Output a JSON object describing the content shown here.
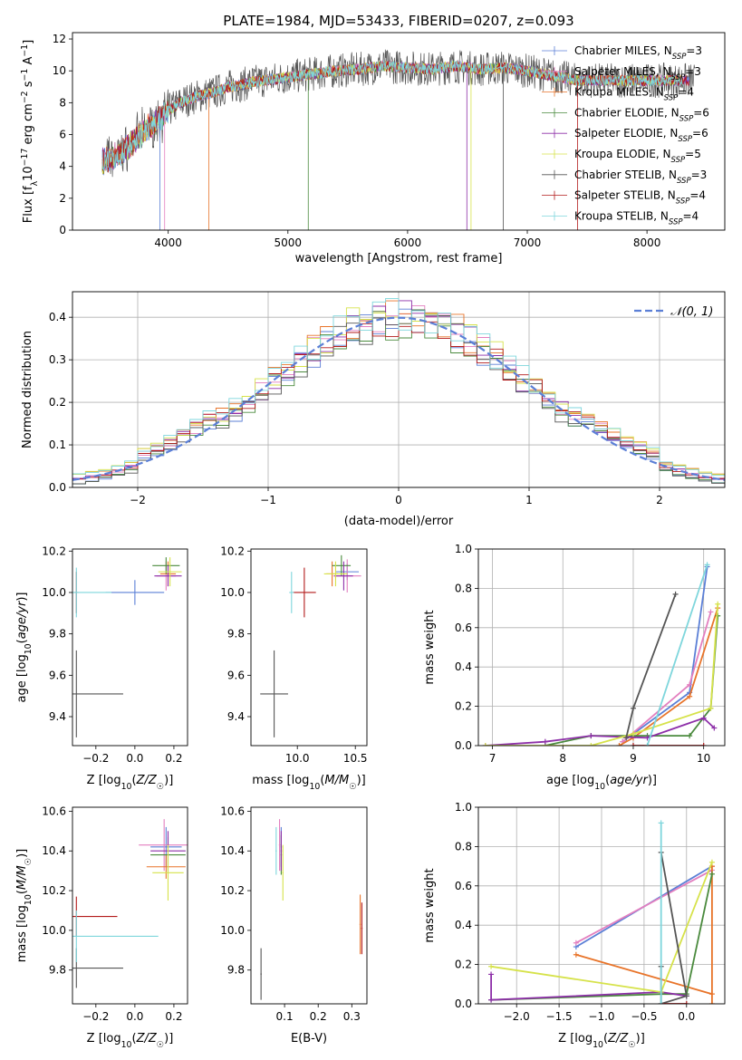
{
  "figure": {
    "title": "PLATE=1984, MJD=53433, FIBERID=0207, z=0.093"
  },
  "chart_data": [
    {
      "id": "spectrum",
      "type": "line",
      "xlabel": "wavelength [Angstrom, rest frame]",
      "ylabel": "Flux [f_λ10^-17 erg cm^-2 s^-1 A^-1]",
      "xlim": [
        3200,
        8650
      ],
      "ylim": [
        0,
        12.4
      ],
      "xticks": [
        4000,
        5000,
        6000,
        7000,
        8000
      ],
      "yticks": [
        0,
        2,
        4,
        6,
        8,
        10,
        12
      ],
      "legend_position": "top-right",
      "series": [
        {
          "name": "Chabrier MILES, N_SSP=3",
          "color": "#5b7fd6"
        },
        {
          "name": "Salpeter MILES, N_SSP=3",
          "color": "#e37fbf"
        },
        {
          "name": "Kroupa MILES, N_SSP=4",
          "color": "#e8742a"
        },
        {
          "name": "Chabrier ELODIE, N_SSP=6",
          "color": "#4a8a3d"
        },
        {
          "name": "Salpeter ELODIE, N_SSP=6",
          "color": "#8d2fa8"
        },
        {
          "name": "Kroupa ELODIE, N_SSP=5",
          "color": "#d6e24a"
        },
        {
          "name": "Chabrier STELIB, N_SSP=3",
          "color": "#555555"
        },
        {
          "name": "Salpeter STELIB, N_SSP=4",
          "color": "#b31b1b"
        },
        {
          "name": "Kroupa STELIB, N_SSP=4",
          "color": "#7ed6dc"
        }
      ],
      "profile": {
        "x": [
          3450,
          3600,
          3700,
          3800,
          3900,
          4000,
          4100,
          4200,
          4300,
          4400,
          4500,
          4600,
          4700,
          4800,
          4900,
          5000,
          5200,
          5400,
          5600,
          5800,
          6000,
          6200,
          6400,
          6600,
          6800,
          7000,
          7200,
          7420
        ],
        "y": [
          4.3,
          4.8,
          5.5,
          6.2,
          6.8,
          7.5,
          8.0,
          8.3,
          8.5,
          8.7,
          9.0,
          9.1,
          9.3,
          9.4,
          9.5,
          9.6,
          9.8,
          10.0,
          10.1,
          10.3,
          10.2,
          10.1,
          10.3,
          10.1,
          10.2,
          10.0,
          9.7,
          9.4
        ]
      },
      "noise_spikes": [
        3930,
        3970,
        4340,
        5170,
        6495,
        6530,
        6800,
        7420
      ]
    },
    {
      "id": "residuals",
      "type": "step",
      "xlabel": "(data-model)/error",
      "ylabel": "Normed distribution",
      "xlim": [
        -2.5,
        2.5
      ],
      "ylim": [
        0,
        0.46
      ],
      "xticks": [
        -2,
        -1,
        0,
        1,
        2
      ],
      "yticks": [
        0.0,
        0.1,
        0.2,
        0.3,
        0.4
      ],
      "reference": {
        "name": "𝒩(0, 1)",
        "mean": 0,
        "sigma": 1,
        "color": "#5b7fd6"
      },
      "legend_position": "top-right"
    },
    {
      "id": "age_vs_Z",
      "type": "errorbar",
      "xlabel": "Z [log10(Z/Z☉)]",
      "ylabel": "age [log10(age/yr)]",
      "xlim": [
        -0.32,
        0.27
      ],
      "ylim": [
        9.26,
        10.21
      ],
      "xticks": [
        -0.2,
        0.0,
        0.2
      ],
      "yticks": [
        9.4,
        9.6,
        9.8,
        10.0,
        10.2
      ],
      "points": [
        {
          "x": 0.0,
          "y": 10.0,
          "xerr": 0.15,
          "yerr": 0.06,
          "color": "#5b7fd6"
        },
        {
          "x": 0.16,
          "y": 10.08,
          "xerr": 0.05,
          "yerr": 0.07,
          "color": "#e37fbf"
        },
        {
          "x": 0.17,
          "y": 10.09,
          "xerr": 0.04,
          "yerr": 0.06,
          "color": "#e8742a"
        },
        {
          "x": 0.16,
          "y": 10.13,
          "xerr": 0.07,
          "yerr": 0.04,
          "color": "#4a8a3d"
        },
        {
          "x": 0.17,
          "y": 10.08,
          "xerr": 0.07,
          "yerr": 0.05,
          "color": "#8d2fa8"
        },
        {
          "x": 0.18,
          "y": 10.1,
          "xerr": 0.06,
          "yerr": 0.07,
          "color": "#d6e24a"
        },
        {
          "x": -0.3,
          "y": 9.51,
          "xerr": 0.24,
          "yerr": 0.21,
          "color": "#555555"
        },
        {
          "x": -0.3,
          "y": 10.0,
          "xerr": 0.01,
          "yerr": 0.1,
          "color": "#b31b1b"
        },
        {
          "x": -0.3,
          "y": 10.0,
          "xerr": 0.18,
          "yerr": 0.12,
          "color": "#7ed6dc"
        }
      ]
    },
    {
      "id": "age_vs_mass",
      "type": "errorbar",
      "xlabel": "mass [log10(M/M☉)]",
      "ylabel": "",
      "xlim": [
        9.6,
        10.6
      ],
      "ylim": [
        9.26,
        10.21
      ],
      "xticks": [
        10.0,
        10.5
      ],
      "yticks": [
        9.4,
        9.6,
        9.8,
        10.0,
        10.2
      ],
      "points": [
        {
          "x": 10.43,
          "y": 10.1,
          "xerr": 0.1,
          "yerr": 0.04,
          "color": "#5b7fd6"
        },
        {
          "x": 10.43,
          "y": 10.08,
          "xerr": 0.12,
          "yerr": 0.08,
          "color": "#e37fbf"
        },
        {
          "x": 10.3,
          "y": 10.09,
          "xerr": 0.05,
          "yerr": 0.06,
          "color": "#e8742a"
        },
        {
          "x": 10.38,
          "y": 10.13,
          "xerr": 0.08,
          "yerr": 0.05,
          "color": "#4a8a3d"
        },
        {
          "x": 10.4,
          "y": 10.08,
          "xerr": 0.08,
          "yerr": 0.07,
          "color": "#8d2fa8"
        },
        {
          "x": 10.33,
          "y": 10.09,
          "xerr": 0.1,
          "yerr": 0.06,
          "color": "#d6e24a"
        },
        {
          "x": 9.8,
          "y": 9.51,
          "xerr": 0.12,
          "yerr": 0.21,
          "color": "#555555"
        },
        {
          "x": 10.06,
          "y": 10.0,
          "xerr": 0.1,
          "yerr": 0.12,
          "color": "#b31b1b"
        },
        {
          "x": 9.95,
          "y": 10.0,
          "xerr": 0.02,
          "yerr": 0.1,
          "color": "#7ed6dc"
        }
      ]
    },
    {
      "id": "weight_vs_age",
      "type": "line",
      "xlabel": "age [log10(age/yr)]",
      "ylabel": "mass weight",
      "xlim": [
        6.8,
        10.3
      ],
      "ylim": [
        0,
        1.0
      ],
      "xticks": [
        7,
        8,
        9,
        10
      ],
      "yticks": [
        0.0,
        0.2,
        0.4,
        0.6,
        0.8,
        1.0
      ],
      "series": [
        {
          "color": "#5b7fd6",
          "x": [
            8.85,
            9.8,
            10.05
          ],
          "y": [
            0.02,
            0.27,
            0.91
          ]
        },
        {
          "color": "#e37fbf",
          "x": [
            8.85,
            9.8,
            10.1
          ],
          "y": [
            0.02,
            0.31,
            0.68
          ]
        },
        {
          "color": "#e8742a",
          "x": [
            8.8,
            9.0,
            9.8,
            10.2
          ],
          "y": [
            0.0,
            0.04,
            0.25,
            0.7
          ]
        },
        {
          "color": "#4a8a3d",
          "x": [
            7.75,
            8.4,
            9.2,
            9.8,
            10.1,
            10.2
          ],
          "y": [
            0.0,
            0.05,
            0.05,
            0.05,
            0.19,
            0.66
          ]
        },
        {
          "color": "#8d2fa8",
          "x": [
            6.9,
            7.75,
            8.4,
            9.2,
            10.0,
            10.15
          ],
          "y": [
            0.0,
            0.02,
            0.05,
            0.04,
            0.14,
            0.09
          ]
        },
        {
          "color": "#d6e24a",
          "x": [
            6.9,
            8.4,
            9.0,
            10.1,
            10.2
          ],
          "y": [
            0.0,
            0.0,
            0.06,
            0.19,
            0.72
          ]
        },
        {
          "color": "#555555",
          "x": [
            8.9,
            9.0,
            9.6
          ],
          "y": [
            0.04,
            0.19,
            0.77
          ]
        },
        {
          "color": "#b31b1b",
          "x": [
            9.0,
            10.0
          ],
          "y": [
            0.0,
            0.0
          ]
        },
        {
          "color": "#7ed6dc",
          "x": [
            9.2,
            10.05
          ],
          "y": [
            0.0,
            0.92
          ]
        }
      ]
    },
    {
      "id": "mass_vs_Z",
      "type": "errorbar",
      "xlabel": "Z [log10(Z/Z☉)]",
      "ylabel": "mass [log10(M/M☉)]",
      "xlim": [
        -0.32,
        0.27
      ],
      "ylim": [
        9.63,
        10.62
      ],
      "xticks": [
        -0.2,
        0.0,
        0.2
      ],
      "yticks": [
        9.8,
        10.0,
        10.2,
        10.4,
        10.6
      ],
      "points": [
        {
          "x": 0.16,
          "y": 10.42,
          "xerr": 0.08,
          "yerr": 0.1,
          "color": "#5b7fd6"
        },
        {
          "x": 0.15,
          "y": 10.43,
          "xerr": 0.13,
          "yerr": 0.13,
          "color": "#e37fbf"
        },
        {
          "x": 0.16,
          "y": 10.32,
          "xerr": 0.1,
          "yerr": 0.06,
          "color": "#e8742a"
        },
        {
          "x": 0.17,
          "y": 10.38,
          "xerr": 0.09,
          "yerr": 0.09,
          "color": "#4a8a3d"
        },
        {
          "x": 0.17,
          "y": 10.4,
          "xerr": 0.09,
          "yerr": 0.1,
          "color": "#8d2fa8"
        },
        {
          "x": 0.17,
          "y": 10.29,
          "xerr": 0.08,
          "yerr": 0.14,
          "color": "#d6e24a"
        },
        {
          "x": -0.3,
          "y": 9.81,
          "xerr": 0.24,
          "yerr": 0.1,
          "color": "#555555"
        },
        {
          "x": -0.3,
          "y": 10.07,
          "xerr": 0.21,
          "yerr": 0.1,
          "color": "#b31b1b"
        },
        {
          "x": -0.3,
          "y": 9.97,
          "xerr": 0.42,
          "yerr": 0.13,
          "color": "#7ed6dc"
        }
      ]
    },
    {
      "id": "mass_vs_ebv",
      "type": "errorbar",
      "xlabel": "E(B-V)",
      "ylabel": "",
      "xlim": [
        0.0,
        0.345
      ],
      "ylim": [
        9.63,
        10.62
      ],
      "xticks": [
        0.1,
        0.2,
        0.3
      ],
      "yticks": [
        9.8,
        10.0,
        10.2,
        10.4,
        10.6
      ],
      "points": [
        {
          "x": 0.09,
          "y": 10.42,
          "xerr": 0.002,
          "yerr": 0.1,
          "color": "#5b7fd6"
        },
        {
          "x": 0.085,
          "y": 10.43,
          "xerr": 0.002,
          "yerr": 0.13,
          "color": "#e37fbf"
        },
        {
          "x": 0.325,
          "y": 10.03,
          "xerr": 0.002,
          "yerr": 0.15,
          "color": "#e8742a"
        },
        {
          "x": 0.09,
          "y": 10.38,
          "xerr": 0.002,
          "yerr": 0.1,
          "color": "#4a8a3d"
        },
        {
          "x": 0.09,
          "y": 10.4,
          "xerr": 0.002,
          "yerr": 0.1,
          "color": "#8d2fa8"
        },
        {
          "x": 0.095,
          "y": 10.29,
          "xerr": 0.002,
          "yerr": 0.14,
          "color": "#d6e24a"
        },
        {
          "x": 0.03,
          "y": 9.78,
          "xerr": 0.002,
          "yerr": 0.13,
          "color": "#555555"
        },
        {
          "x": 0.33,
          "y": 10.01,
          "xerr": 0.002,
          "yerr": 0.13,
          "color": "#b31b1b"
        },
        {
          "x": 0.075,
          "y": 10.4,
          "xerr": 0.002,
          "yerr": 0.12,
          "color": "#7ed6dc"
        }
      ]
    },
    {
      "id": "weight_vs_Z",
      "type": "line",
      "xlabel": "Z [log10(Z/Z☉)]",
      "ylabel": "mass weight",
      "xlim": [
        -2.45,
        0.45
      ],
      "ylim": [
        0,
        1.0
      ],
      "xticks": [
        -2.0,
        -1.5,
        -1.0,
        -0.5,
        0.0
      ],
      "yticks": [
        0.0,
        0.2,
        0.4,
        0.6,
        0.8,
        1.0
      ],
      "series": [
        {
          "color": "#5b7fd6",
          "x": [
            -1.3,
            0.3
          ],
          "y": [
            0.29,
            0.7
          ]
        },
        {
          "color": "#e37fbf",
          "x": [
            -1.3,
            0.3
          ],
          "y": [
            0.31,
            0.68
          ]
        },
        {
          "color": "#e8742a",
          "x": [
            -1.3,
            0.3,
            0.3,
            0.3
          ],
          "y": [
            0.25,
            0.05,
            0.0,
            0.7
          ]
        },
        {
          "color": "#4a8a3d",
          "x": [
            -2.3,
            -0.3,
            0.0,
            0.3
          ],
          "y": [
            0.02,
            0.05,
            0.05,
            0.66
          ]
        },
        {
          "color": "#8d2fa8",
          "x": [
            -2.3,
            -2.3,
            -0.3,
            0.0
          ],
          "y": [
            0.15,
            0.02,
            0.06,
            0.04
          ]
        },
        {
          "color": "#d6e24a",
          "x": [
            -2.3,
            -0.3,
            0.3
          ],
          "y": [
            0.19,
            0.06,
            0.72
          ]
        },
        {
          "color": "#555555",
          "x": [
            -0.3,
            -0.3,
            0.0,
            -0.3
          ],
          "y": [
            0.19,
            0.0,
            0.04,
            0.77
          ]
        },
        {
          "color": "#b31b1b",
          "x": [
            -0.3,
            0.0
          ],
          "y": [
            0.0,
            0.0
          ]
        },
        {
          "color": "#7ed6dc",
          "x": [
            -0.3,
            -0.3
          ],
          "y": [
            0.0,
            0.92
          ]
        }
      ]
    }
  ]
}
